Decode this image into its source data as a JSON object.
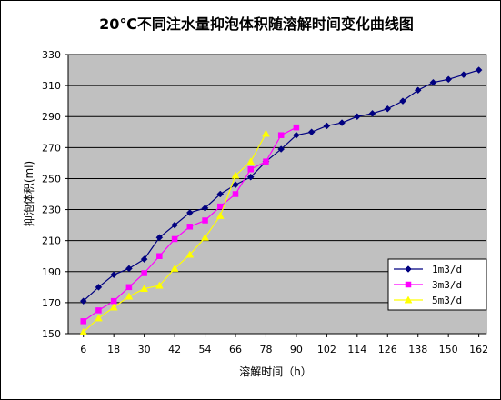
{
  "chart_data": {
    "type": "line",
    "title": "20℃不同注水量抑泡体积随溶解时间变化曲线图",
    "xlabel": "溶解时间（h）",
    "ylabel": "抑泡体积(ml)",
    "x_ticks": [
      "6",
      "18",
      "30",
      "42",
      "54",
      "66",
      "78",
      "90",
      "102",
      "114",
      "126",
      "138",
      "150",
      "162"
    ],
    "y_ticks": [
      "150",
      "170",
      "190",
      "210",
      "230",
      "250",
      "270",
      "290",
      "310",
      "330"
    ],
    "xlim": [
      0,
      165
    ],
    "ylim": [
      150,
      330
    ],
    "grid": "horizontal",
    "legend_position": "right-lower",
    "series": [
      {
        "name": "1m3/d",
        "color": "#000080",
        "marker": "diamond",
        "points": [
          [
            6,
            171
          ],
          [
            12,
            180
          ],
          [
            18,
            188
          ],
          [
            24,
            192
          ],
          [
            30,
            198
          ],
          [
            36,
            212
          ],
          [
            42,
            220
          ],
          [
            48,
            228
          ],
          [
            54,
            231
          ],
          [
            60,
            240
          ],
          [
            66,
            246
          ],
          [
            72,
            251
          ],
          [
            78,
            261
          ],
          [
            84,
            269
          ],
          [
            90,
            278
          ],
          [
            96,
            280
          ],
          [
            102,
            284
          ],
          [
            108,
            286
          ],
          [
            114,
            290
          ],
          [
            120,
            292
          ],
          [
            126,
            295
          ],
          [
            132,
            300
          ],
          [
            138,
            307
          ],
          [
            144,
            312
          ],
          [
            150,
            314
          ],
          [
            156,
            317
          ],
          [
            162,
            320
          ]
        ]
      },
      {
        "name": "3m3/d",
        "color": "#FF00FF",
        "marker": "square",
        "points": [
          [
            6,
            158
          ],
          [
            12,
            165
          ],
          [
            18,
            171
          ],
          [
            24,
            180
          ],
          [
            30,
            189
          ],
          [
            36,
            200
          ],
          [
            42,
            211
          ],
          [
            48,
            219
          ],
          [
            54,
            223
          ],
          [
            60,
            232
          ],
          [
            66,
            240
          ],
          [
            72,
            256
          ],
          [
            78,
            261
          ],
          [
            84,
            278
          ],
          [
            90,
            283
          ]
        ]
      },
      {
        "name": "5m3/d",
        "color": "#FFFF00",
        "marker": "triangle",
        "points": [
          [
            6,
            151
          ],
          [
            12,
            160
          ],
          [
            18,
            167
          ],
          [
            24,
            174
          ],
          [
            30,
            179
          ],
          [
            36,
            181
          ],
          [
            42,
            192
          ],
          [
            48,
            201
          ],
          [
            54,
            212
          ],
          [
            60,
            226
          ],
          [
            66,
            252
          ],
          [
            72,
            261
          ],
          [
            78,
            279
          ]
        ]
      }
    ]
  }
}
